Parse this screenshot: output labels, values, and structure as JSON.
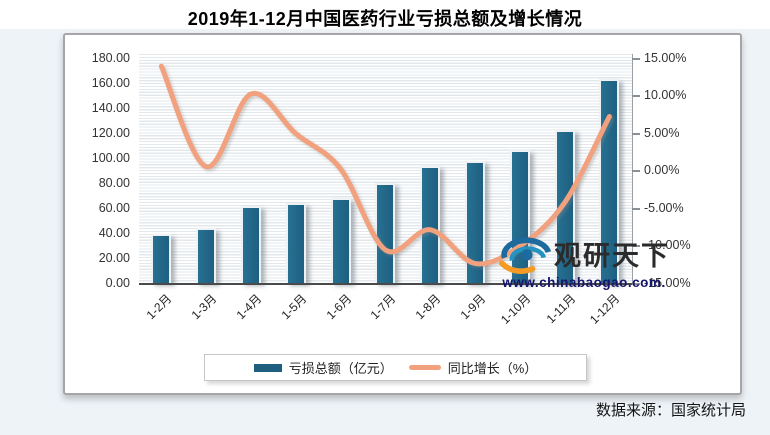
{
  "title": "2019年1-12月中国医药行业亏损总额及增长情况",
  "source": "数据来源：国家统计局",
  "watermark": {
    "brand": "观研天下",
    "url": "www.chinabaogao.com."
  },
  "legend": {
    "bars": "亏损总额（亿元）",
    "line": "同比增长（%）"
  },
  "axes": {
    "left_ticks": [
      "180.00",
      "160.00",
      "140.00",
      "120.00",
      "100.00",
      "80.00",
      "60.00",
      "40.00",
      "20.00",
      "0.00"
    ],
    "right_ticks": [
      "15.00%",
      "10.00%",
      "5.00%",
      "0.00%",
      "-5.00%",
      "-10.00%",
      "-15.00%"
    ]
  },
  "colors": {
    "bar": "#1e5f80",
    "bar_light": "#277193",
    "line": "#f2a17e",
    "logo_blue": "#1d6a9e",
    "logo_teal": "#2592c0",
    "logo_orange": "#f59a23"
  },
  "chart_data": {
    "type": "bar+line",
    "title": "2019年1-12月中国医药行业亏损总额及增长情况",
    "categories": [
      "1-2月",
      "1-3月",
      "1-4月",
      "1-5月",
      "1-6月",
      "1-7月",
      "1-8月",
      "1-9月",
      "1-10月",
      "1-11月",
      "1-12月"
    ],
    "series": [
      {
        "name": "亏损总额（亿元）",
        "type": "bar",
        "axis": "left",
        "values": [
          39,
          44,
          61,
          64,
          68,
          80,
          93,
          97,
          106,
          122,
          163
        ]
      },
      {
        "name": "同比增长（%）",
        "type": "line",
        "axis": "right",
        "values": [
          14.0,
          0.6,
          10.3,
          5.0,
          0.3,
          -10.5,
          -7.8,
          -12.3,
          -10.0,
          -4.2,
          7.3
        ]
      }
    ],
    "left_axis": {
      "min": 0,
      "max": 180,
      "step": 20,
      "label": "亏损总额（亿元）"
    },
    "right_axis": {
      "min": -15,
      "max": 15,
      "step": 5,
      "unit": "%",
      "label": "同比增长（%）"
    },
    "xlabel": "",
    "grid": "horizontal-minor",
    "legend_position": "bottom"
  }
}
